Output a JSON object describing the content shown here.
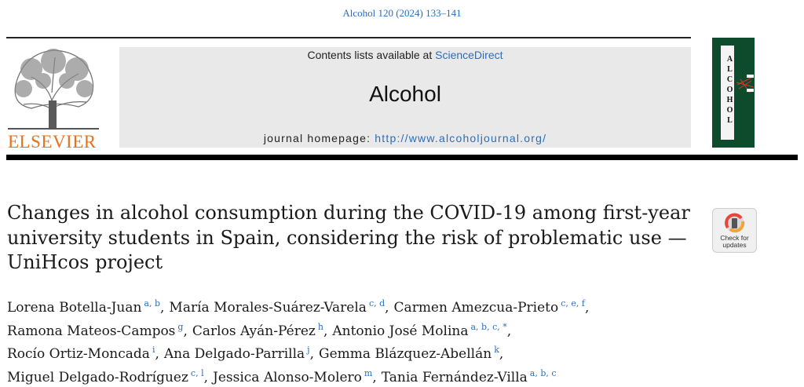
{
  "header": {
    "citation": "Alcohol 120 (2024) 133–141",
    "publisher": "ELSEVIER",
    "contents_prefix": "Contents lists available at ",
    "contents_link": "ScienceDirect",
    "journal_name": "Alcohol",
    "homepage_label": "journal homepage: ",
    "homepage_url": "http://www.alcoholjournal.org/",
    "cover_title": "ALCOHOL"
  },
  "article": {
    "title": "Changes in alcohol consumption during the COVID-19 among first-year university students in Spain, considering the risk of problematic use — UniHcos project",
    "badge": "Check for updates",
    "author_lines": [
      [
        {
          "name": "Lorena Botella-Juan",
          "affiliations": "a, b"
        },
        {
          "name": "María Morales-Suárez-Varela",
          "affiliations": "c, d"
        },
        {
          "name": "Carmen Amezcua-Prieto",
          "affiliations": "c, e, f"
        }
      ],
      [
        {
          "name": "Ramona Mateos-Campos",
          "affiliations": "g"
        },
        {
          "name": "Carlos Ayán-Pérez",
          "affiliations": "h"
        },
        {
          "name": "Antonio José Molina",
          "affiliations": "a, b, c, *"
        }
      ],
      [
        {
          "name": "Rocío Ortiz-Moncada",
          "affiliations": "i"
        },
        {
          "name": "Ana Delgado-Parrilla",
          "affiliations": "j"
        },
        {
          "name": "Gemma Blázquez-Abellán",
          "affiliations": "k"
        }
      ],
      [
        {
          "name": "Miguel Delgado-Rodríguez",
          "affiliations": "c, l"
        },
        {
          "name": "Jessica Alonso-Molero",
          "affiliations": "m"
        },
        {
          "name": "Tania Fernández-Villa",
          "affiliations": "a, b, c"
        }
      ]
    ]
  }
}
